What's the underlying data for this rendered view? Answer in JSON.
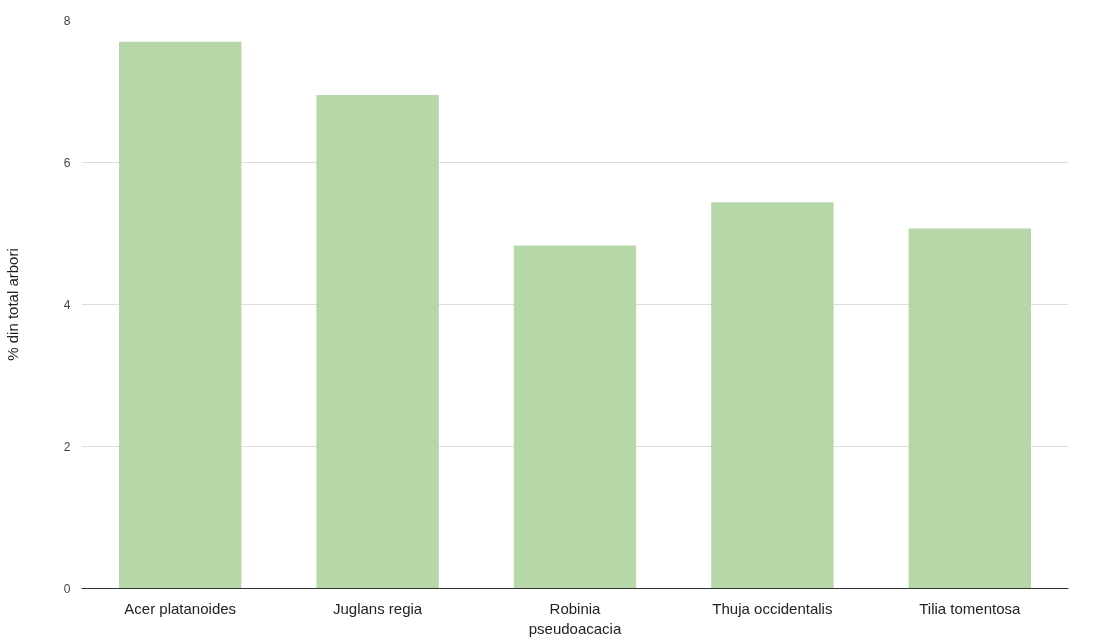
{
  "chart_data": {
    "type": "bar",
    "ylabel": "% din total arbori",
    "categories": [
      "Acer platanoides",
      "Juglans regia",
      "Robinia pseudoacacia",
      "Thuja occidentalis",
      "Tilia tomentosa"
    ],
    "values": [
      7.7,
      6.95,
      4.83,
      5.44,
      5.07
    ],
    "color": "#b6d7a8",
    "ylim": [
      0,
      8
    ],
    "yticks": [
      0,
      2,
      4,
      6,
      8
    ],
    "grid": "y"
  }
}
